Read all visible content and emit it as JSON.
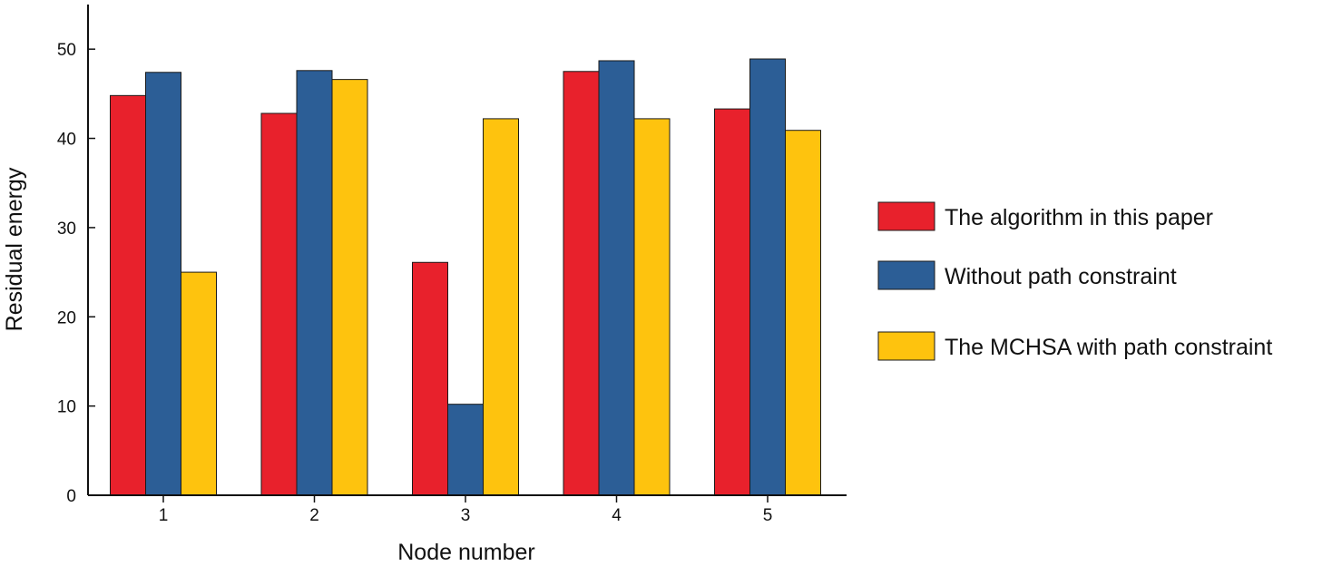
{
  "chart_data": {
    "type": "bar",
    "title": "",
    "xlabel": "Node number",
    "ylabel": "Residual energy",
    "categories": [
      "1",
      "2",
      "3",
      "4",
      "5"
    ],
    "ylim": [
      0,
      55
    ],
    "yticks": [
      0,
      10,
      20,
      30,
      40,
      50
    ],
    "grid": false,
    "legend_position": "right",
    "series": [
      {
        "name": "The algorithm in this paper",
        "color": "#e8212c",
        "values": [
          44.8,
          42.8,
          26.1,
          47.5,
          43.3
        ]
      },
      {
        "name": "Without path constraint",
        "color": "#2c5e96",
        "values": [
          47.4,
          47.6,
          10.2,
          48.7,
          48.9
        ]
      },
      {
        "name": "The MCHSA with path constraint",
        "color": "#fec30e",
        "values": [
          25.0,
          46.6,
          42.2,
          42.2,
          40.9
        ]
      }
    ]
  }
}
